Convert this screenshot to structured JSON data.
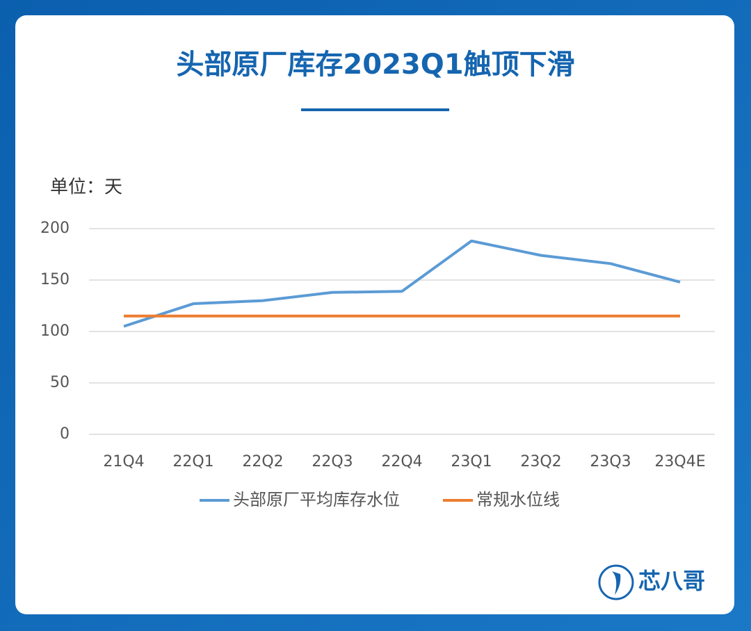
{
  "chart_data": {
    "type": "line",
    "title": "头部原厂库存2023Q1触顶下滑",
    "y_label": "单位：天",
    "categories": [
      "21Q4",
      "22Q1",
      "22Q2",
      "22Q3",
      "22Q4",
      "23Q1",
      "23Q2",
      "23Q3",
      "23Q4E"
    ],
    "series": [
      {
        "name": "头部原厂平均库存水位",
        "color": "#5b9bd5",
        "values": [
          105,
          127,
          130,
          138,
          139,
          188,
          174,
          166,
          148
        ]
      },
      {
        "name": "常规水位线",
        "color": "#ed7d31",
        "values": [
          115,
          115,
          115,
          115,
          115,
          115,
          115,
          115,
          115
        ]
      }
    ],
    "ylim": [
      0,
      200
    ],
    "yticks": [
      0,
      50,
      100,
      150,
      200
    ],
    "grid": true,
    "legend": "bottom"
  },
  "brand": "芯八哥"
}
